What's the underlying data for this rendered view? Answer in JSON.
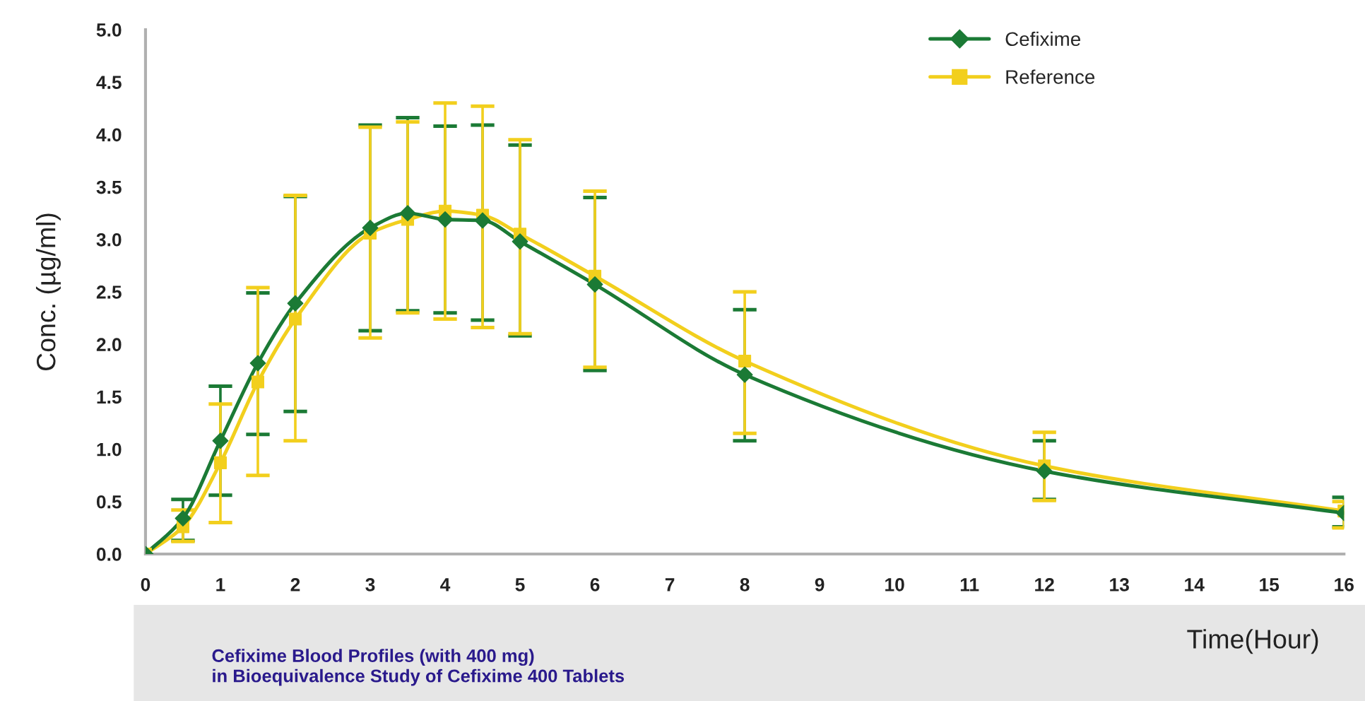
{
  "chart_data": {
    "type": "line",
    "title": "Cefixime Blood Profiles (with 400 mg)\nin Bioequivalence Study of Cefixime 400 Tablets",
    "xlabel": "Time(Hour)",
    "ylabel": "Conc. (µg/ml)",
    "x": [
      0,
      0.5,
      1,
      1.5,
      2,
      3,
      3.5,
      4,
      4.5,
      5,
      6,
      8,
      12,
      16
    ],
    "xlim": [
      0,
      16
    ],
    "xticks": [
      0,
      1,
      2,
      3,
      4,
      5,
      6,
      7,
      8,
      9,
      10,
      11,
      12,
      13,
      14,
      15,
      16
    ],
    "ylim": [
      0,
      5
    ],
    "yticks": [
      {
        "value": 0,
        "label": "0.0"
      },
      {
        "value": 0.5,
        "label": "0.5"
      },
      {
        "value": 1,
        "label": "1.0"
      },
      {
        "value": 1.5,
        "label": "1.5"
      },
      {
        "value": 2,
        "label": "2.0"
      },
      {
        "value": 2.5,
        "label": "2.5"
      },
      {
        "value": 3,
        "label": "3.0"
      },
      {
        "value": 3.5,
        "label": "3.5"
      },
      {
        "value": 4,
        "label": "4.0"
      },
      {
        "value": 4.5,
        "label": "4.5"
      },
      {
        "value": 5,
        "label": "5.0"
      }
    ],
    "legend": "top right",
    "line_style": "solid",
    "series": [
      {
        "name": "Cefixime",
        "color": "#1b7a35",
        "marker": "diamond",
        "values": [
          0,
          0.34,
          1.08,
          1.82,
          2.39,
          3.11,
          3.25,
          3.19,
          3.18,
          2.98,
          2.57,
          1.71,
          0.79,
          0.39
        ],
        "errors": [
          null,
          [
            0.13,
            0.52
          ],
          [
            0.56,
            1.6
          ],
          [
            1.14,
            2.49
          ],
          [
            1.36,
            3.41
          ],
          [
            2.13,
            4.09
          ],
          [
            2.32,
            4.16
          ],
          [
            2.3,
            4.08
          ],
          [
            2.23,
            4.09
          ],
          [
            2.08,
            3.9
          ],
          [
            1.75,
            3.4
          ],
          [
            1.08,
            2.33
          ],
          [
            0.52,
            1.08
          ],
          [
            0.26,
            0.54
          ]
        ]
      },
      {
        "name": "Reference",
        "color": "#f2cf1d",
        "marker": "square",
        "values": [
          0,
          0.26,
          0.87,
          1.64,
          2.24,
          3.06,
          3.19,
          3.27,
          3.23,
          3.05,
          2.65,
          1.84,
          0.84,
          0.41
        ],
        "errors": [
          null,
          [
            0.12,
            0.42
          ],
          [
            0.3,
            1.43
          ],
          [
            0.75,
            2.54
          ],
          [
            1.08,
            3.42
          ],
          [
            2.06,
            4.07
          ],
          [
            2.3,
            4.12
          ],
          [
            2.24,
            4.3
          ],
          [
            2.16,
            4.27
          ],
          [
            2.1,
            3.95
          ],
          [
            1.78,
            3.46
          ],
          [
            1.15,
            2.5
          ],
          [
            0.51,
            1.16
          ],
          [
            0.25,
            0.5
          ]
        ]
      }
    ]
  }
}
